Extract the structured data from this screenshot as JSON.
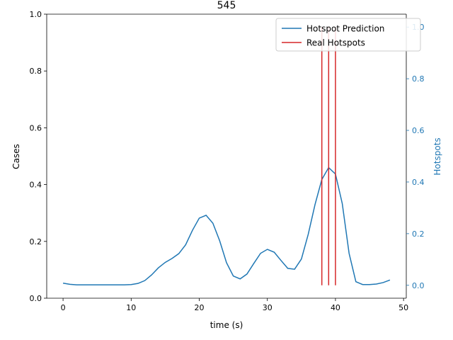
{
  "chart_data": {
    "type": "line",
    "title": "545",
    "xlabel": "time (s)",
    "ylabel_left": "Cases",
    "ylabel_right": "Hotspots",
    "xlim": [
      -2.4,
      50.4
    ],
    "ylim_left": [
      0,
      1
    ],
    "ylim_right": [
      -0.05,
      1.05
    ],
    "x_ticks": [
      "0",
      "10",
      "20",
      "30",
      "40",
      "50"
    ],
    "y_ticks_left": [
      "0.0",
      "0.2",
      "0.4",
      "0.6",
      "0.8",
      "1.0"
    ],
    "y_ticks_right": [
      "0.0",
      "0.2",
      "0.4",
      "0.6",
      "0.8",
      "1.0"
    ],
    "grid": false,
    "legend_position": "upper-right",
    "colors": {
      "prediction": "#1f77b4",
      "real": "#d62728",
      "right_axis": "#1f77b4"
    },
    "series": [
      {
        "name": "Hotspot Prediction",
        "axis": "left",
        "x": [
          0,
          1,
          2,
          3,
          4,
          5,
          6,
          7,
          8,
          9,
          10,
          11,
          12,
          13,
          14,
          15,
          16,
          17,
          18,
          19,
          20,
          21,
          22,
          23,
          24,
          25,
          26,
          27,
          28,
          29,
          30,
          31,
          32,
          33,
          34,
          35,
          36,
          37,
          38,
          39,
          40,
          41,
          42,
          43,
          44,
          45,
          46,
          47,
          48
        ],
        "values": [
          0.053,
          0.049,
          0.047,
          0.047,
          0.047,
          0.047,
          0.047,
          0.047,
          0.047,
          0.047,
          0.048,
          0.052,
          0.062,
          0.082,
          0.107,
          0.126,
          0.14,
          0.157,
          0.188,
          0.239,
          0.282,
          0.292,
          0.264,
          0.202,
          0.125,
          0.078,
          0.068,
          0.085,
          0.122,
          0.158,
          0.172,
          0.162,
          0.133,
          0.105,
          0.102,
          0.138,
          0.225,
          0.33,
          0.418,
          0.46,
          0.437,
          0.333,
          0.158,
          0.058,
          0.048,
          0.048,
          0.05,
          0.055,
          0.064
        ]
      },
      {
        "name": "Real Hotspots",
        "axis": "right",
        "type": "vlines",
        "x": [
          38,
          39,
          40
        ],
        "y_from": 0,
        "y_to": 1
      }
    ]
  }
}
